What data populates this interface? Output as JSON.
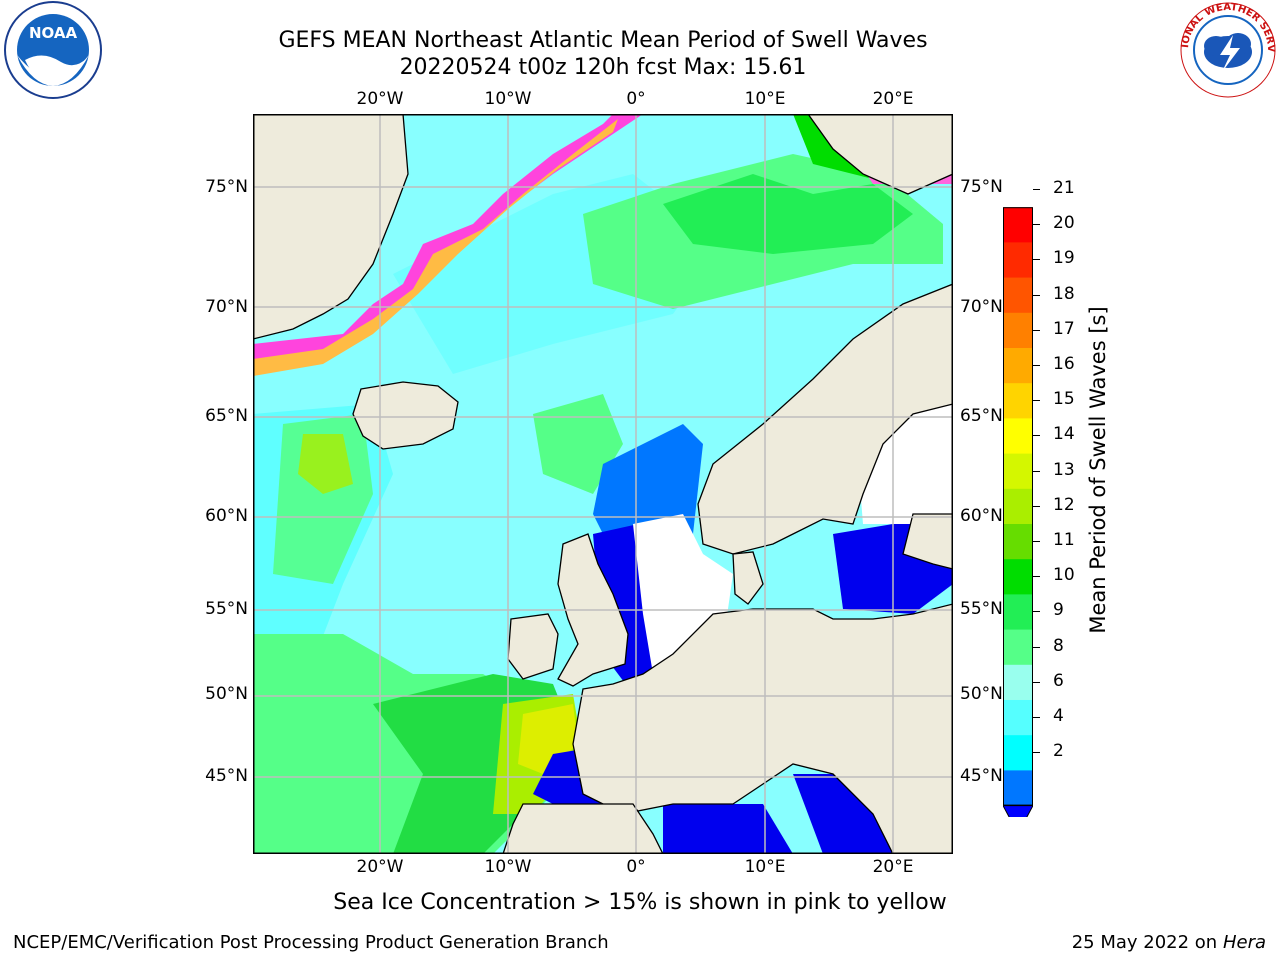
{
  "title_line1": "GEFS MEAN Northeast Atlantic Mean Period of Swell Waves",
  "title_line2": "20220524 t00z 120h fcst   Max: 15.61",
  "logos": {
    "left": "NOAA",
    "right_text": "NATIONAL WEATHER SERVICE",
    "left_icon": "noaa-logo-icon",
    "right_icon": "nws-logo-icon"
  },
  "lon_ticks": [
    "20°W",
    "10°W",
    "0°",
    "10°E",
    "20°E"
  ],
  "lat_ticks": [
    "75°N",
    "70°N",
    "65°N",
    "60°N",
    "55°N",
    "50°N",
    "45°N"
  ],
  "colorbar": {
    "label": "Mean Period of Swell Waves [s]",
    "ticks": [
      "21",
      "20",
      "19",
      "18",
      "17",
      "16",
      "15",
      "14",
      "13",
      "12",
      "11",
      "10",
      "9",
      "8",
      "6",
      "4",
      "2"
    ],
    "colors": [
      "#ff0000",
      "#ff2a00",
      "#ff5500",
      "#ff8000",
      "#ffaa00",
      "#ffd400",
      "#ffff00",
      "#d4f700",
      "#aaee00",
      "#66dd00",
      "#00dd00",
      "#22ee55",
      "#55ff88",
      "#99ffee",
      "#55ffff",
      "#00ffff",
      "#0077ff"
    ],
    "extend_color": "#0000ff"
  },
  "colors": {
    "land": "#eeebdc",
    "grid": "#bdbdbd",
    "ocean_cyan": "#88ffff",
    "ocean_green": "#55ff88",
    "ocean_darkgreen": "#22dd44",
    "ocean_blue": "#0066ff",
    "ocean_deepblue": "#0000ee",
    "ice_pink": "#ff44dd",
    "ice_orange": "#ffaa44"
  },
  "sea_ice_note": "Sea Ice Concentration > 15% is shown in pink to yellow",
  "footer_left": "NCEP/EMC/Verification Post Processing Product Generation Branch",
  "footer_right_date": "25 May 2022 on",
  "footer_right_host": "Hera"
}
